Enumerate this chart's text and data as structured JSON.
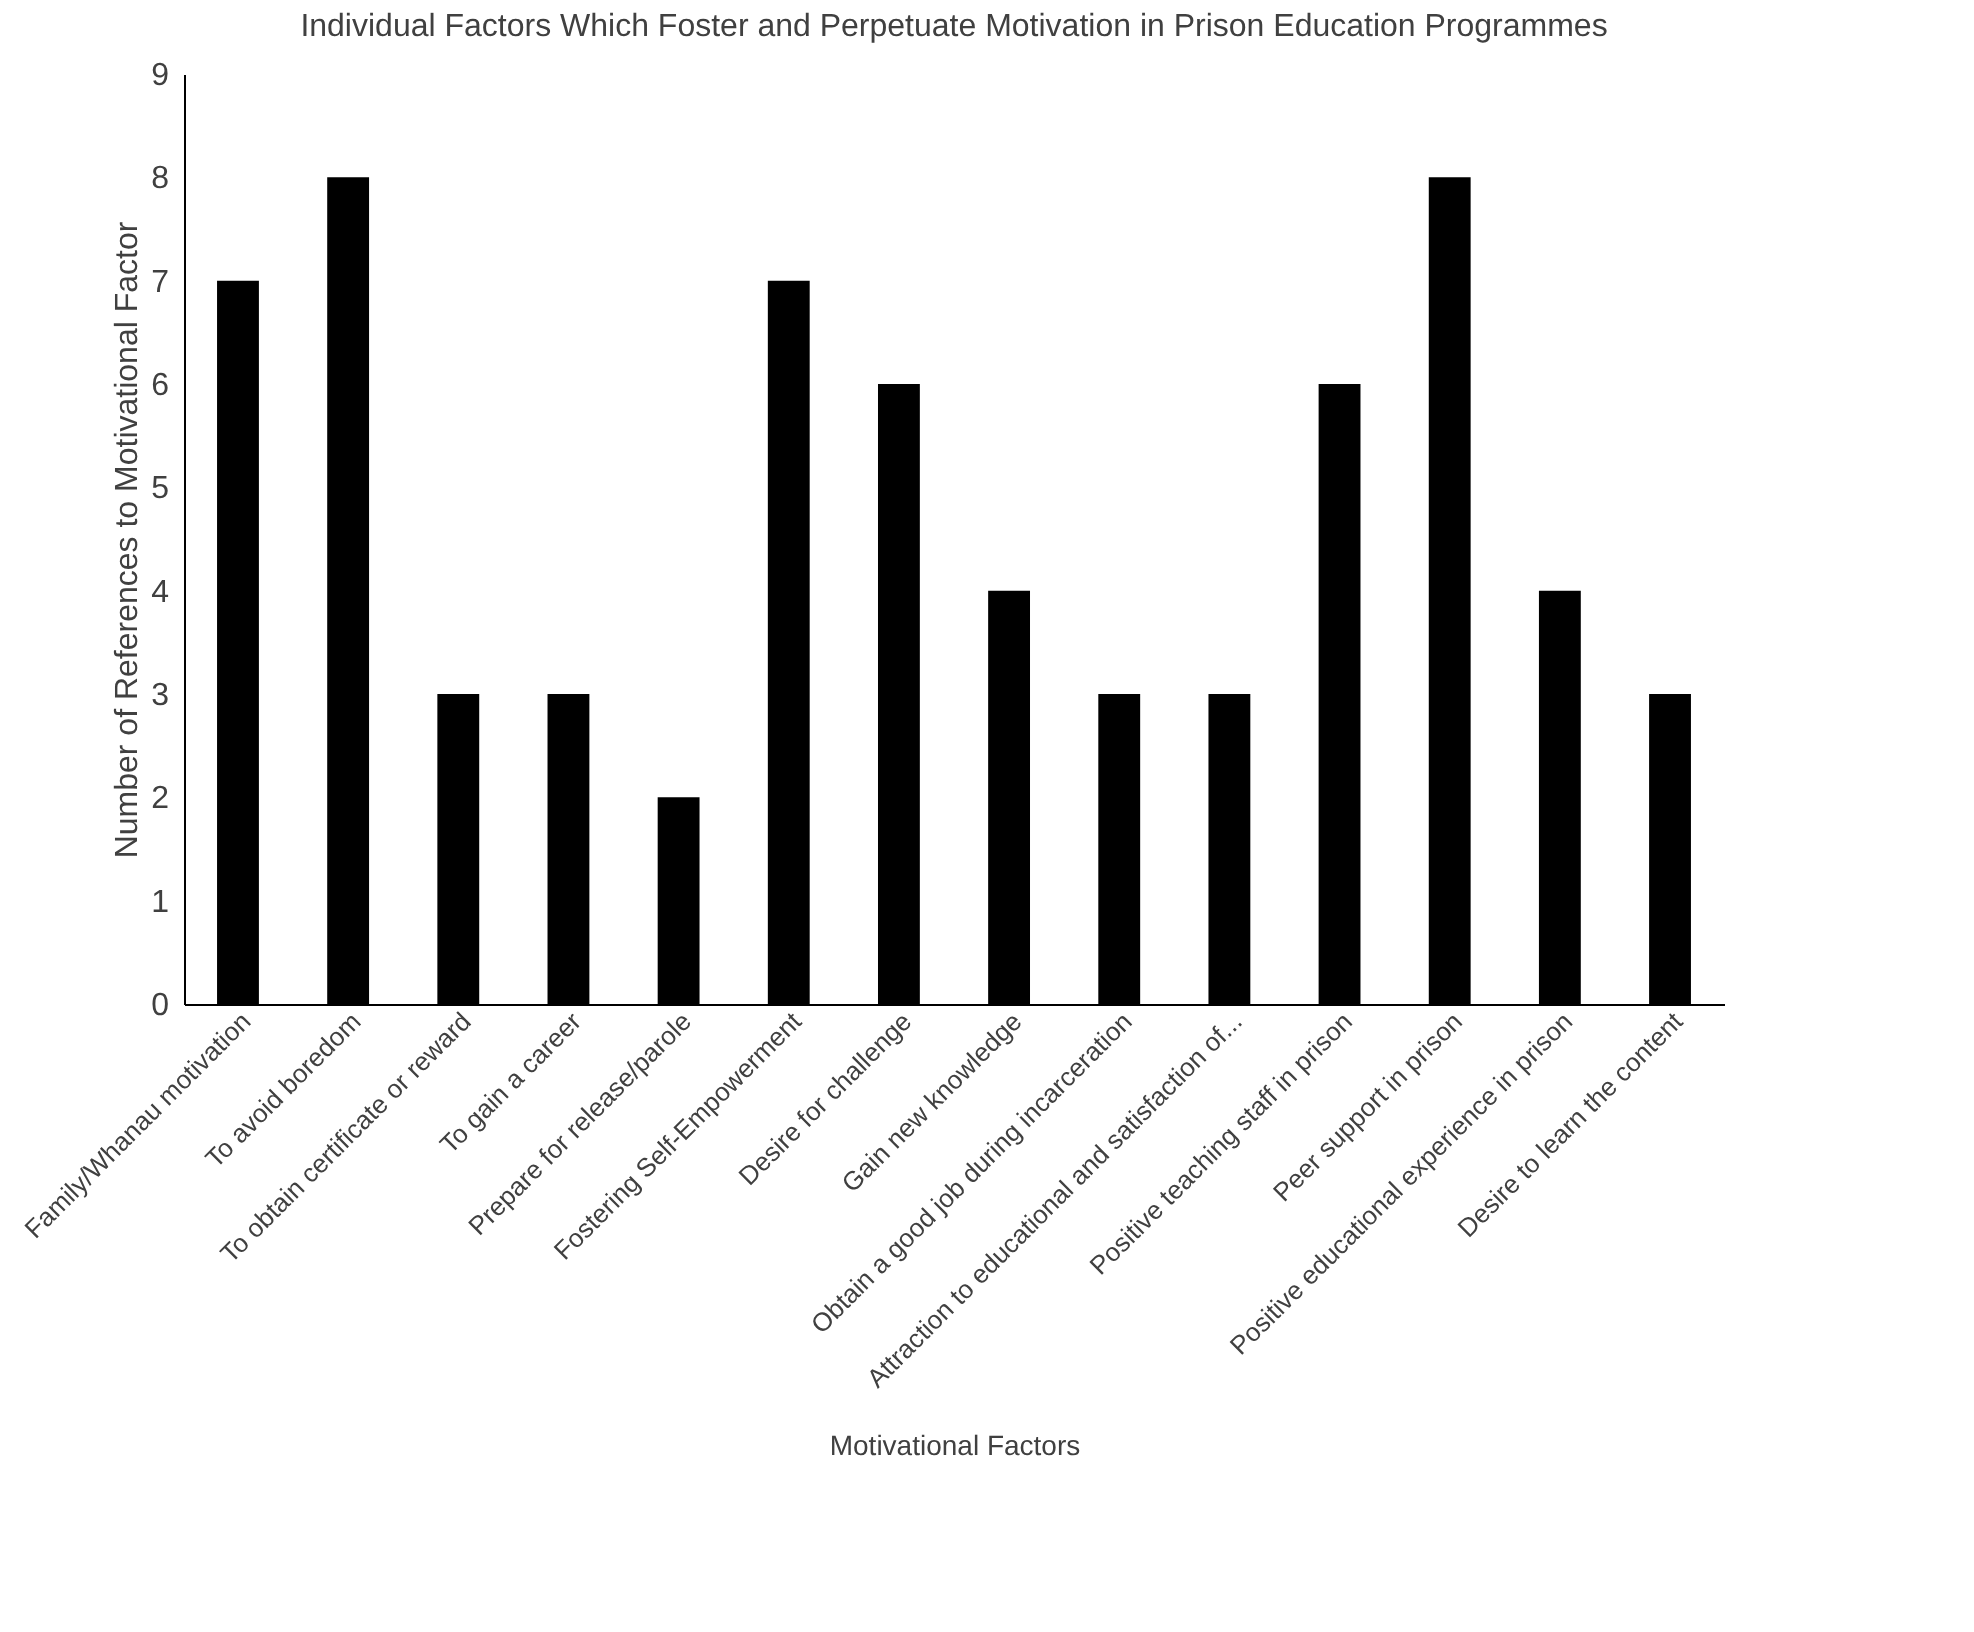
{
  "chart_data": {
    "type": "bar",
    "title": "Individual Factors Which Foster and Perpetuate Motivation in Prison Education Programmes",
    "xlabel": "Motivational Factors",
    "ylabel": "Number of References to Motivational Factor",
    "categories": [
      "Family/Whanau motivation",
      "To avoid boredom",
      "To obtain certificate or reward",
      "To gain a career",
      "Prepare for release/parole",
      "Fostering Self-Empowerment",
      "Desire for challenge",
      "Gain new knowledge",
      "Obtain a good job during incarceration",
      "Attraction to educational and satisfaction of...",
      "Positive teaching staff in prison",
      "Peer support in prison",
      "Positive educational experience in prison",
      "Desire to learn the content"
    ],
    "values": [
      7,
      8,
      3,
      3,
      2,
      7,
      6,
      4,
      3,
      3,
      6,
      8,
      4,
      3
    ],
    "color": "#000000",
    "ylim": [
      0,
      9
    ],
    "yticks": [
      0,
      1,
      2,
      3,
      4,
      5,
      6,
      7,
      8,
      9
    ],
    "grid": false
  }
}
